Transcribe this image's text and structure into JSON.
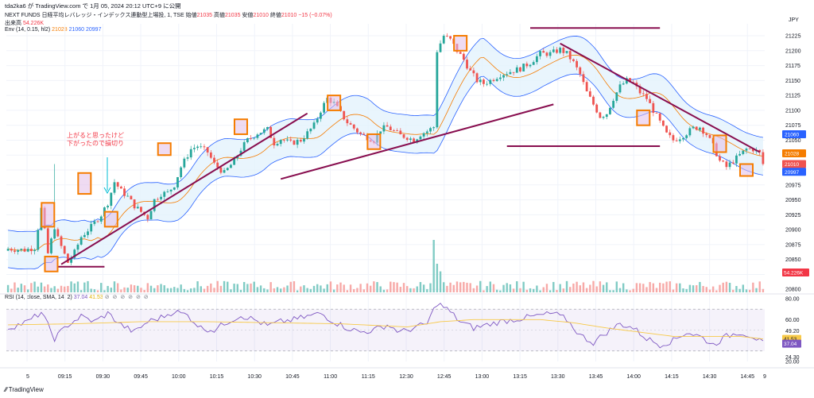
{
  "header": {
    "publish": "tda2ka6 が TradingView.com で 1月 05, 2024 20:12 UTC+9 に公開",
    "symbol": "NEXT FUNDS 日経平均レバレッジ・インデックス連動型上場投, 1, TSE",
    "ohlc": {
      "open_label": "始値",
      "open": "21035",
      "high_label": "高値",
      "high": "21035",
      "low_label": "安値",
      "low": "21010",
      "close_label": "終値",
      "close": "21010",
      "change": "−15 (−0.07%)"
    },
    "volume_label": "出来高",
    "volume_value": "54.226K",
    "env_label": "Env (14, 0.15, hl2)",
    "env_values": [
      "21028",
      "21060",
      "20997"
    ],
    "rsi_label": "RSI (14, close, SMA, 14, 2)",
    "rsi_values": [
      "37.04",
      "41.53"
    ]
  },
  "annotation": "上がると思ったけど\n下がったので損切り",
  "colors": {
    "up": "#26a69a",
    "down": "#ef5350",
    "band": "#2962ff",
    "bandfill": "#e3f2fd",
    "basis": "#f57c00",
    "trend": "#880e4f",
    "box": "#f57c00",
    "rsi": "#7e57c2",
    "rsiMa": "#f7c948"
  },
  "footer": "TradingView",
  "chart_data": {
    "type": "candlestick",
    "currency": "JPY",
    "x_ticks": [
      "5",
      "09:15",
      "09:30",
      "09:45",
      "10:00",
      "10:15",
      "10:30",
      "10:45",
      "11:00",
      "11:15",
      "12:30",
      "12:45",
      "13:00",
      "13:15",
      "13:30",
      "13:45",
      "14:00",
      "14:15",
      "14:30",
      "14:45",
      "9"
    ],
    "y_ticks": [
      20800,
      20825,
      20850,
      20875,
      20900,
      20925,
      20950,
      20975,
      21000,
      21025,
      21050,
      21075,
      21100,
      21125,
      21150,
      21175,
      21200,
      21225
    ],
    "ylim": [
      20795,
      21245
    ],
    "price_tags": [
      {
        "label": "21060",
        "value": 21060,
        "color": "#2962ff"
      },
      {
        "label": "21028",
        "value": 21028,
        "color": "#f57c00"
      },
      {
        "label": "21010",
        "value": 21010,
        "color": "#ef5350"
      },
      {
        "label": "20997",
        "value": 20997,
        "color": "#2962ff"
      }
    ],
    "volume_tag": "54.226K",
    "close_path": [
      [
        0,
        20868
      ],
      [
        5,
        20866
      ],
      [
        8,
        20870
      ],
      [
        10,
        20935
      ],
      [
        12,
        20860
      ],
      [
        14,
        20905
      ],
      [
        15,
        20885
      ],
      [
        18,
        20845
      ],
      [
        20,
        20862
      ],
      [
        22,
        20888
      ],
      [
        25,
        20905
      ],
      [
        28,
        20925
      ],
      [
        30,
        20945
      ],
      [
        32,
        20980
      ],
      [
        34,
        20965
      ],
      [
        36,
        20955
      ],
      [
        38,
        20940
      ],
      [
        40,
        20930
      ],
      [
        42,
        20920
      ],
      [
        44,
        20950
      ],
      [
        46,
        20960
      ],
      [
        48,
        20962
      ],
      [
        50,
        20975
      ],
      [
        52,
        21005
      ],
      [
        55,
        21035
      ],
      [
        57,
        21040
      ],
      [
        60,
        21030
      ],
      [
        62,
        21010
      ],
      [
        65,
        20995
      ],
      [
        68,
        21015
      ],
      [
        70,
        21035
      ],
      [
        72,
        21050
      ],
      [
        75,
        21062
      ],
      [
        78,
        21068
      ],
      [
        80,
        21045
      ],
      [
        82,
        21052
      ],
      [
        85,
        21045
      ],
      [
        88,
        21050
      ],
      [
        90,
        21062
      ],
      [
        92,
        21075
      ],
      [
        94,
        21100
      ],
      [
        96,
        21120
      ],
      [
        98,
        21112
      ],
      [
        100,
        21095
      ],
      [
        102,
        21080
      ],
      [
        104,
        21070
      ],
      [
        106,
        21060
      ],
      [
        108,
        21055
      ],
      [
        110,
        21050
      ],
      [
        112,
        21068
      ],
      [
        114,
        21072
      ],
      [
        116,
        21065
      ],
      [
        118,
        21058
      ],
      [
        120,
        21055
      ],
      [
        122,
        21050
      ],
      [
        124,
        21060
      ],
      [
        126,
        21065
      ],
      [
        128,
        21072
      ],
      [
        129,
        21200
      ],
      [
        131,
        21225
      ],
      [
        133,
        21218
      ],
      [
        135,
        21200
      ],
      [
        137,
        21185
      ],
      [
        139,
        21165
      ],
      [
        141,
        21150
      ],
      [
        143,
        21145
      ],
      [
        145,
        21150
      ],
      [
        148,
        21160
      ],
      [
        151,
        21165
      ],
      [
        154,
        21170
      ],
      [
        157,
        21180
      ],
      [
        160,
        21195
      ],
      [
        163,
        21195
      ],
      [
        166,
        21202
      ],
      [
        168,
        21195
      ],
      [
        170,
        21180
      ],
      [
        172,
        21160
      ],
      [
        174,
        21130
      ],
      [
        176,
        21110
      ],
      [
        178,
        21090
      ],
      [
        180,
        21095
      ],
      [
        182,
        21120
      ],
      [
        184,
        21140
      ],
      [
        186,
        21150
      ],
      [
        188,
        21145
      ],
      [
        190,
        21130
      ],
      [
        192,
        21120
      ],
      [
        194,
        21100
      ],
      [
        196,
        21080
      ],
      [
        198,
        21060
      ],
      [
        200,
        21050
      ],
      [
        202,
        21055
      ],
      [
        204,
        21062
      ],
      [
        206,
        21070
      ],
      [
        208,
        21072
      ],
      [
        210,
        21060
      ],
      [
        212,
        21040
      ],
      [
        214,
        21015
      ],
      [
        216,
        21005
      ],
      [
        218,
        21015
      ],
      [
        220,
        21025
      ],
      [
        222,
        21035
      ],
      [
        224,
        21035
      ],
      [
        226,
        21028
      ],
      [
        227,
        21010
      ]
    ],
    "candle_count": 228,
    "envelope": {
      "length": 14,
      "percent": 0.15,
      "source": "hl2"
    },
    "rsi_ylim": [
      20,
      80
    ],
    "rsi_ticks": [
      80,
      60,
      49.2,
      24.3,
      20
    ],
    "rsi_tick_labels": [
      "80.00",
      "60.00",
      "49.20",
      "24.30",
      "20.00"
    ],
    "rsi_tags": [
      {
        "label": "41.53",
        "color": "#f7c948"
      },
      {
        "label": "37.04",
        "color": "#7e57c2"
      }
    ],
    "rsi_path": [
      [
        0,
        52
      ],
      [
        6,
        58
      ],
      [
        10,
        67
      ],
      [
        14,
        42
      ],
      [
        18,
        55
      ],
      [
        22,
        63
      ],
      [
        26,
        58
      ],
      [
        30,
        66
      ],
      [
        34,
        55
      ],
      [
        38,
        48
      ],
      [
        42,
        58
      ],
      [
        46,
        62
      ],
      [
        50,
        68
      ],
      [
        54,
        64
      ],
      [
        58,
        52
      ],
      [
        62,
        50
      ],
      [
        66,
        58
      ],
      [
        70,
        64
      ],
      [
        74,
        60
      ],
      [
        78,
        54
      ],
      [
        82,
        58
      ],
      [
        86,
        60
      ],
      [
        90,
        63
      ],
      [
        94,
        66
      ],
      [
        98,
        58
      ],
      [
        102,
        52
      ],
      [
        106,
        48
      ],
      [
        110,
        50
      ],
      [
        114,
        55
      ],
      [
        118,
        48
      ],
      [
        122,
        52
      ],
      [
        126,
        56
      ],
      [
        129,
        76
      ],
      [
        132,
        70
      ],
      [
        136,
        58
      ],
      [
        140,
        52
      ],
      [
        144,
        55
      ],
      [
        148,
        58
      ],
      [
        152,
        60
      ],
      [
        156,
        62
      ],
      [
        160,
        64
      ],
      [
        164,
        66
      ],
      [
        168,
        60
      ],
      [
        172,
        45
      ],
      [
        176,
        38
      ],
      [
        180,
        48
      ],
      [
        184,
        56
      ],
      [
        188,
        52
      ],
      [
        192,
        42
      ],
      [
        196,
        36
      ],
      [
        200,
        40
      ],
      [
        204,
        48
      ],
      [
        208,
        44
      ],
      [
        212,
        36
      ],
      [
        216,
        44
      ],
      [
        220,
        48
      ],
      [
        224,
        44
      ],
      [
        227,
        37
      ]
    ],
    "rsi_ma_path": [
      [
        0,
        55
      ],
      [
        20,
        56
      ],
      [
        40,
        58
      ],
      [
        60,
        58
      ],
      [
        80,
        57
      ],
      [
        100,
        56
      ],
      [
        120,
        53
      ],
      [
        130,
        58
      ],
      [
        140,
        60
      ],
      [
        160,
        60
      ],
      [
        170,
        57
      ],
      [
        180,
        52
      ],
      [
        190,
        48
      ],
      [
        200,
        44
      ],
      [
        210,
        44
      ],
      [
        220,
        44
      ],
      [
        227,
        41.5
      ]
    ]
  }
}
